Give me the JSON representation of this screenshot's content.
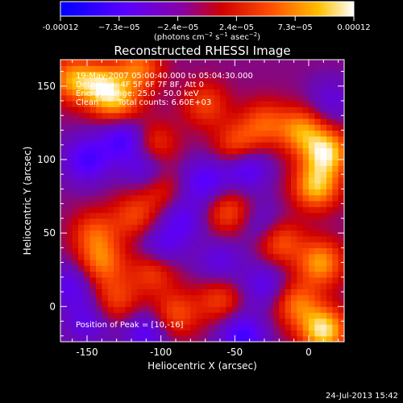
{
  "colorbar": {
    "tick_labels": [
      "-0.00012",
      "−7.3e−05",
      "−2.4e−05",
      "2.4e−05",
      "7.3e−05",
      "0.00012"
    ],
    "unit_label": "(photons cm",
    "unit_sup1": "−2",
    "unit_mid": " s",
    "unit_sup2": "−1",
    "unit_mid2": " asec",
    "unit_sup3": "−2",
    "unit_end": ")",
    "range": [
      -0.00012,
      0.00012
    ],
    "colormap": [
      "#0000ff",
      "#8000ff",
      "#b00060",
      "#ff0000",
      "#ff8000",
      "#ffff00",
      "#ffffff"
    ]
  },
  "chart_data": {
    "type": "heatmap",
    "title": "Reconstructed RHESSI Image",
    "xlabel": "Heliocentric X (arcsec)",
    "ylabel": "Heliocentric Y (arcsec)",
    "xlim": [
      -168,
      24
    ],
    "ylim": [
      -24,
      168
    ],
    "xticks": [
      -150,
      -100,
      -50,
      0
    ],
    "yticks": [
      0,
      50,
      100,
      150
    ],
    "annotations": {
      "time": "19-May-2007 05:00:40.000 to 05:04:30.000",
      "detectors": "Detectors: 4F 5F 6F 7F 8F, Att 0",
      "energy": "Energy Range: 25.0 - 50.0 keV",
      "method": "Clean",
      "counts": "Total counts: 6.60E+03",
      "peak": "Position of Peak = [10,-16]"
    },
    "peak_position": [
      10,
      -16
    ],
    "blobs": [
      {
        "x": 10,
        "y": -16,
        "v": 1.0
      },
      {
        "x": 12,
        "y": 105,
        "v": 0.95
      },
      {
        "x": 5,
        "y": 82,
        "v": 0.85
      },
      {
        "x": -5,
        "y": 120,
        "v": 0.7
      },
      {
        "x": -20,
        "y": 45,
        "v": 0.6
      },
      {
        "x": 8,
        "y": 30,
        "v": 0.75
      },
      {
        "x": -8,
        "y": 2,
        "v": 0.6
      },
      {
        "x": -140,
        "y": 150,
        "v": 0.8
      },
      {
        "x": -160,
        "y": 155,
        "v": 0.7
      },
      {
        "x": -115,
        "y": 162,
        "v": 0.6
      },
      {
        "x": -128,
        "y": 138,
        "v": 0.6
      },
      {
        "x": -70,
        "y": 138,
        "v": 0.45
      },
      {
        "x": -48,
        "y": 110,
        "v": 0.55
      },
      {
        "x": -30,
        "y": 125,
        "v": 0.5
      },
      {
        "x": -105,
        "y": 110,
        "v": 0.5
      },
      {
        "x": -55,
        "y": 65,
        "v": 0.5
      },
      {
        "x": -145,
        "y": 50,
        "v": 0.5
      },
      {
        "x": -140,
        "y": 30,
        "v": 0.6
      },
      {
        "x": -118,
        "y": 62,
        "v": 0.45
      },
      {
        "x": -130,
        "y": 5,
        "v": 0.45
      },
      {
        "x": -105,
        "y": 25,
        "v": 0.5
      },
      {
        "x": -90,
        "y": -5,
        "v": 0.5
      },
      {
        "x": -60,
        "y": 5,
        "v": 0.45
      },
      {
        "x": -100,
        "y": 80,
        "v": 0.35
      },
      {
        "x": -125,
        "y": 115,
        "v": -0.6
      },
      {
        "x": -150,
        "y": 100,
        "v": -0.55
      },
      {
        "x": -110,
        "y": 95,
        "v": -0.45
      },
      {
        "x": -70,
        "y": 85,
        "v": -0.5
      },
      {
        "x": -42,
        "y": 95,
        "v": -0.55
      },
      {
        "x": -85,
        "y": 60,
        "v": -0.4
      },
      {
        "x": -30,
        "y": 55,
        "v": -0.35
      },
      {
        "x": -100,
        "y": 40,
        "v": -0.45
      },
      {
        "x": -160,
        "y": 15,
        "v": -0.4
      },
      {
        "x": -60,
        "y": 30,
        "v": -0.35
      },
      {
        "x": -45,
        "y": -20,
        "v": -0.6
      },
      {
        "x": -110,
        "y": -18,
        "v": -0.45
      },
      {
        "x": -150,
        "y": -10,
        "v": -0.35
      },
      {
        "x": 15,
        "y": 140,
        "v": -0.3
      },
      {
        "x": -30,
        "y": 15,
        "v": -0.4
      }
    ]
  },
  "footer": {
    "date": "24-Jul-2013 15:42"
  }
}
